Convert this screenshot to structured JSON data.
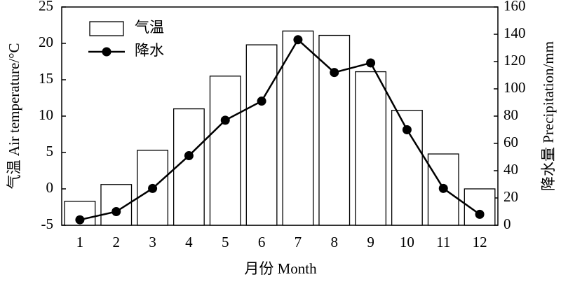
{
  "chart_data": {
    "type": "bar",
    "xlabel": "月份 Month",
    "ylabel": "气温 Air temperature/°C",
    "y2label": "降水量 Precipitation/mm",
    "categories": [
      "1",
      "2",
      "3",
      "4",
      "5",
      "6",
      "7",
      "8",
      "9",
      "10",
      "11",
      "12"
    ],
    "series": [
      {
        "name": "气温",
        "type": "bar",
        "color": "#ffffff",
        "values": [
          -1.7,
          0.6,
          5.3,
          11.0,
          15.5,
          19.8,
          21.7,
          21.1,
          16.1,
          10.8,
          4.8,
          0
        ]
      },
      {
        "name": "降水",
        "type": "line",
        "axis": "y2",
        "color": "#000000",
        "values": [
          4,
          10,
          27,
          51,
          77,
          91,
          136,
          112,
          119,
          70,
          27,
          8
        ]
      }
    ],
    "ylim": [
      -5,
      25
    ],
    "yticks": [
      -5,
      0,
      5,
      10,
      15,
      20,
      25
    ],
    "y2lim": [
      0,
      160
    ],
    "y2ticks": [
      0,
      20,
      40,
      60,
      80,
      100,
      120,
      140,
      160
    ],
    "legend": "upper left",
    "grid": false
  }
}
